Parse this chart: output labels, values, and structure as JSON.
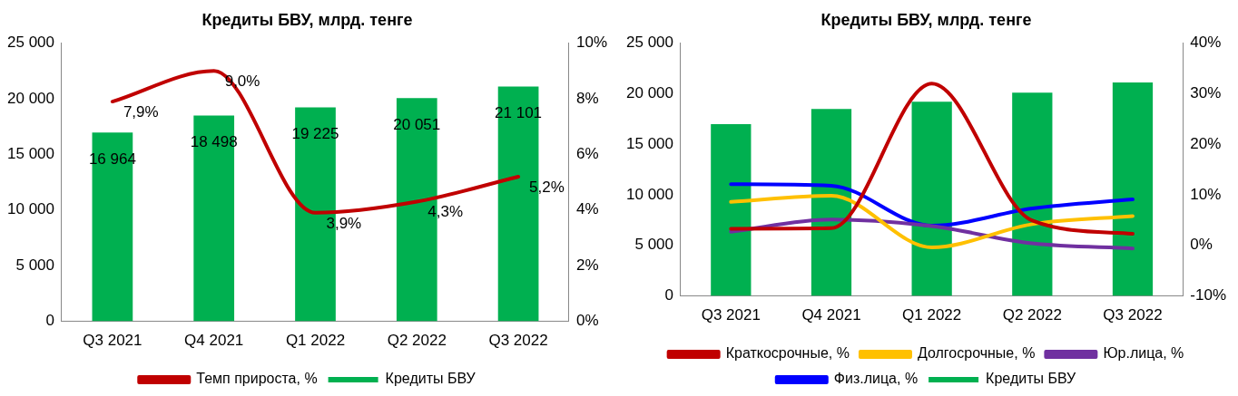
{
  "chart_data": [
    {
      "type": "bar",
      "title": "Кредиты БВУ, млрд. тенге",
      "categories": [
        "Q3 2021",
        "Q4 2021",
        "Q1 2022",
        "Q2 2022",
        "Q3 2022"
      ],
      "series": [
        {
          "name": "Кредиты БВУ",
          "color": "#00b050",
          "values": [
            16964,
            18498,
            19225,
            20051,
            21101
          ],
          "value_labels": [
            "16 964",
            "18 498",
            "19 225",
            "20 051",
            "21 101"
          ]
        },
        {
          "name": "Темп прироста, %",
          "type": "line",
          "axis": "y2",
          "color": "#c00000",
          "values": [
            7.9,
            9.0,
            3.9,
            4.3,
            5.2
          ],
          "value_labels": [
            "7,9%",
            "9,0%",
            "3,9%",
            "4,3%",
            "5,2%"
          ]
        }
      ],
      "ylim": [
        0,
        25000
      ],
      "yticks": [
        0,
        {
          "value": 5000,
          "label": "5 000"
        },
        {
          "value": 10000,
          "label": "10 000"
        },
        {
          "value": 15000,
          "label": "15 000"
        },
        {
          "value": 20000,
          "label": "20 000"
        },
        {
          "value": 25000,
          "label": "25 000"
        }
      ],
      "y2lim": [
        0,
        10
      ],
      "y2ticks": [
        {
          "value": 0,
          "label": "0%"
        },
        {
          "value": 2,
          "label": "2%"
        },
        {
          "value": 4,
          "label": "4%"
        },
        {
          "value": 6,
          "label": "6%"
        },
        {
          "value": 8,
          "label": "8%"
        },
        {
          "value": 10,
          "label": "10%"
        }
      ],
      "grid": false,
      "legend": "bottom",
      "marker": "none"
    },
    {
      "type": "bar",
      "title": "Кредиты БВУ, млрд. тенге",
      "categories": [
        "Q3 2021",
        "Q4 2021",
        "Q1 2022",
        "Q2 2022",
        "Q3 2022"
      ],
      "series": [
        {
          "name": "Кредиты БВУ",
          "color": "#00b050",
          "values": [
            17000,
            18500,
            19200,
            20100,
            21100
          ]
        },
        {
          "name": "Краткосрочные, %",
          "type": "line",
          "axis": "y2",
          "color": "#c00000",
          "values": [
            3.3,
            3.4,
            32.0,
            4.9,
            2.3
          ]
        },
        {
          "name": "Долгосрочные, %",
          "type": "line",
          "axis": "y2",
          "color": "#ffc000",
          "values": [
            8.6,
            9.8,
            -0.4,
            4.2,
            5.8
          ]
        },
        {
          "name": "Юр.лица, %",
          "type": "line",
          "axis": "y2",
          "color": "#7030a0",
          "values": [
            2.7,
            5.1,
            3.8,
            0.4,
            -0.6
          ]
        },
        {
          "name": "Физ.лица, %",
          "type": "line",
          "axis": "y2",
          "color": "#0000ff",
          "values": [
            12.1,
            11.8,
            3.9,
            7.3,
            9.1
          ]
        }
      ],
      "ylim": [
        0,
        25000
      ],
      "yticks": [
        0,
        {
          "value": 5000,
          "label": "5 000"
        },
        {
          "value": 10000,
          "label": "10 000"
        },
        {
          "value": 15000,
          "label": "15 000"
        },
        {
          "value": 20000,
          "label": "20 000"
        },
        {
          "value": 25000,
          "label": "25 000"
        }
      ],
      "y2lim": [
        -10,
        40
      ],
      "y2ticks": [
        {
          "value": -10,
          "label": "-10%"
        },
        {
          "value": 0,
          "label": "0%"
        },
        {
          "value": 10,
          "label": "10%"
        },
        {
          "value": 20,
          "label": "20%"
        },
        {
          "value": 30,
          "label": "30%"
        },
        {
          "value": 40,
          "label": "40%"
        }
      ],
      "grid": false,
      "legend": "bottom",
      "marker": "none"
    }
  ]
}
